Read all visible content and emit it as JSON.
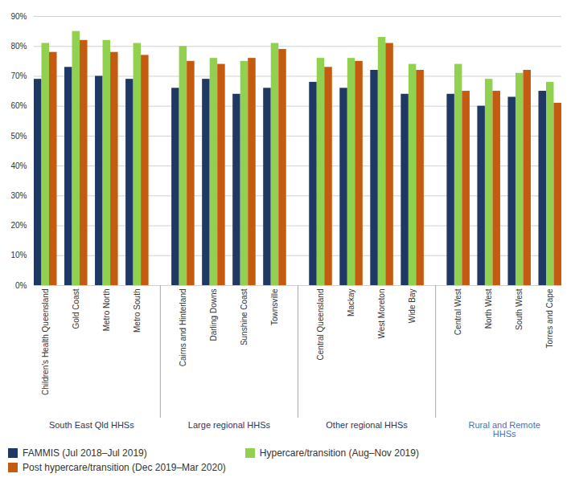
{
  "chart_data": {
    "type": "bar",
    "categories": [
      "Children's Health Queensland",
      "Gold Coast",
      "Metro North",
      "Metro South",
      "Cairns and Hinterland",
      "Darling Downs",
      "Sunshine Coast",
      "Townsville",
      "Central Queensland",
      "Mackay",
      "West Moreton",
      "Wide Bay",
      "Central West",
      "North West",
      "South West",
      "Torres and Cape"
    ],
    "series": [
      {
        "name": "FAMMIS (Jul 2018–Jul 2019)",
        "color": "#1f3864",
        "values": [
          0.69,
          0.73,
          0.7,
          0.69,
          0.66,
          0.69,
          0.64,
          0.66,
          0.68,
          0.66,
          0.72,
          0.64,
          0.64,
          0.6,
          0.63,
          0.65
        ]
      },
      {
        "name": "Hypercare/transition (Aug–Nov 2019)",
        "color": "#92d050",
        "values": [
          0.81,
          0.85,
          0.82,
          0.81,
          0.8,
          0.76,
          0.75,
          0.81,
          0.76,
          0.76,
          0.83,
          0.74,
          0.74,
          0.69,
          0.71,
          0.68
        ]
      },
      {
        "name": "Post hypercare/transition (Dec 2019–Mar 2020)",
        "color": "#c55a11",
        "values": [
          0.78,
          0.82,
          0.78,
          0.77,
          0.75,
          0.74,
          0.76,
          0.79,
          0.73,
          0.75,
          0.81,
          0.72,
          0.65,
          0.65,
          0.72,
          0.61
        ]
      }
    ],
    "groups": [
      {
        "label": "South East Qld HHSs",
        "size": 4,
        "color": "#1f3864"
      },
      {
        "label": "Large regional HHSs",
        "size": 4,
        "color": "#1f3864"
      },
      {
        "label": "Other regional HHSs",
        "size": 4,
        "color": "#1f3864"
      },
      {
        "label": "Rural and Remote\nHHSs",
        "size": 4,
        "color": "#4472c4"
      }
    ],
    "ylim": [
      0,
      0.9
    ],
    "yticks": [
      {
        "value": 0.0,
        "label": "0%"
      },
      {
        "value": 0.1,
        "label": "10%"
      },
      {
        "value": 0.2,
        "label": "20%"
      },
      {
        "value": 0.3,
        "label": "30%"
      },
      {
        "value": 0.4,
        "label": "40%"
      },
      {
        "value": 0.5,
        "label": "50%"
      },
      {
        "value": 0.6,
        "label": "60%"
      },
      {
        "value": 0.7,
        "label": "70%"
      },
      {
        "value": 0.8,
        "label": "80%"
      },
      {
        "value": 0.9,
        "label": "90%"
      }
    ],
    "grid": true,
    "legend": "lower left"
  }
}
